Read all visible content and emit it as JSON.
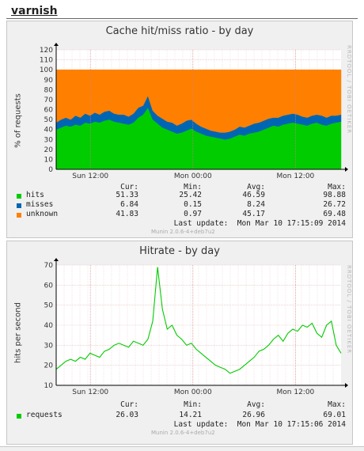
{
  "category": "varnish",
  "graphs": [
    {
      "title": "Cache hit/miss ratio - by day",
      "ylabel": "% of requests",
      "side_text": "RRDTOOL / TOBI OETIKER",
      "y_ticks": [
        "0",
        "10",
        "20",
        "30",
        "40",
        "50",
        "60",
        "70",
        "80",
        "90",
        "100",
        "110",
        "120"
      ],
      "x_ticks": [
        "Sun 12:00",
        "Mon 00:00",
        "Mon 12:00"
      ],
      "headers": {
        "cur": "Cur:",
        "min": "Min:",
        "avg": "Avg:",
        "max": "Max:"
      },
      "legend": [
        {
          "label": "hits",
          "color": "#00cc00",
          "cur": "51.33",
          "min": "25.42",
          "avg": "46.59",
          "max": "98.88"
        },
        {
          "label": "misses",
          "color": "#0066b3",
          "cur": "6.84",
          "min": "0.15",
          "avg": "8.24",
          "max": "26.72"
        },
        {
          "label": "unknown",
          "color": "#ff8000",
          "cur": "41.83",
          "min": "0.97",
          "avg": "45.17",
          "max": "69.48"
        }
      ],
      "last_update": "Last update:  Mon Mar 10 17:15:09 2014",
      "footer": "Munin 2.0.6-4+deb7u2"
    },
    {
      "title": "Hitrate - by day",
      "ylabel": "hits per second",
      "side_text": "RRDTOOL / TOBI OETIKER",
      "y_ticks": [
        "10",
        "20",
        "30",
        "40",
        "50",
        "60",
        "70"
      ],
      "x_ticks": [
        "Sun 12:00",
        "Mon 00:00",
        "Mon 12:00"
      ],
      "headers": {
        "cur": "Cur:",
        "min": "Min:",
        "avg": "Avg:",
        "max": "Max:"
      },
      "legend": [
        {
          "label": "requests",
          "color": "#00cc00",
          "cur": "26.03",
          "min": "14.21",
          "avg": "26.96",
          "max": "69.01"
        }
      ],
      "last_update": "Last update:  Mon Mar 10 17:15:06 2014",
      "footer": "Munin 2.0.6-4+deb7u2"
    }
  ],
  "chart_data": [
    {
      "type": "area",
      "title": "Cache hit/miss ratio - by day",
      "ylabel": "% of requests",
      "ylim": [
        0,
        120
      ],
      "x_ticks": [
        "Sun 12:00",
        "Mon 00:00",
        "Mon 12:00"
      ],
      "stacked": true,
      "grid": true,
      "series": [
        {
          "name": "hits",
          "color": "#00cc00",
          "values": [
            40,
            42,
            44,
            43,
            45,
            44,
            47,
            46,
            48,
            47,
            49,
            50,
            48,
            47,
            46,
            45,
            47,
            52,
            55,
            62,
            50,
            46,
            42,
            40,
            38,
            36,
            37,
            39,
            41,
            38,
            36,
            34,
            33,
            32,
            31,
            30,
            31,
            33,
            35,
            34,
            36,
            37,
            38,
            40,
            42,
            44,
            43,
            45,
            46,
            47,
            46,
            45,
            44,
            46,
            47,
            45,
            44,
            46,
            47,
            48
          ]
        },
        {
          "name": "misses",
          "color": "#0066b3",
          "values": [
            7,
            8,
            8,
            7,
            9,
            8,
            9,
            8,
            9,
            8,
            9,
            9,
            8,
            8,
            9,
            8,
            9,
            10,
            9,
            12,
            9,
            8,
            9,
            8,
            9,
            8,
            9,
            10,
            9,
            8,
            7,
            7,
            6,
            6,
            6,
            7,
            7,
            7,
            8,
            8,
            8,
            9,
            9,
            9,
            9,
            8,
            9,
            9,
            9,
            9,
            9,
            8,
            8,
            8,
            8,
            9,
            8,
            8,
            7,
            7
          ]
        },
        {
          "name": "unknown",
          "color": "#ff8000",
          "values": [
            53,
            50,
            48,
            50,
            46,
            48,
            44,
            46,
            43,
            45,
            42,
            41,
            44,
            45,
            45,
            47,
            44,
            38,
            36,
            26,
            41,
            46,
            49,
            52,
            53,
            56,
            54,
            51,
            50,
            54,
            57,
            59,
            61,
            62,
            63,
            63,
            62,
            60,
            57,
            58,
            56,
            54,
            53,
            51,
            49,
            48,
            48,
            46,
            45,
            44,
            45,
            47,
            48,
            46,
            45,
            46,
            48,
            46,
            46,
            45
          ]
        }
      ]
    },
    {
      "type": "line",
      "title": "Hitrate - by day",
      "ylabel": "hits per second",
      "ylim": [
        10,
        70
      ],
      "x_ticks": [
        "Sun 12:00",
        "Mon 00:00",
        "Mon 12:00"
      ],
      "grid": true,
      "series": [
        {
          "name": "requests",
          "color": "#00cc00",
          "values": [
            18,
            20,
            22,
            23,
            22,
            24,
            23,
            26,
            25,
            24,
            27,
            28,
            30,
            31,
            30,
            29,
            32,
            31,
            30,
            33,
            42,
            69,
            48,
            38,
            40,
            35,
            33,
            30,
            31,
            28,
            26,
            24,
            22,
            20,
            19,
            18,
            16,
            17,
            18,
            20,
            22,
            24,
            27,
            28,
            30,
            33,
            35,
            32,
            36,
            38,
            37,
            40,
            39,
            41,
            36,
            34,
            40,
            42,
            30,
            26
          ]
        }
      ]
    }
  ]
}
